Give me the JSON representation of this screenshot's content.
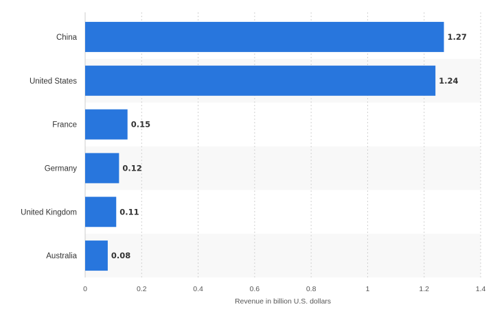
{
  "chart_data": {
    "type": "bar",
    "orientation": "horizontal",
    "categories": [
      "China",
      "United States",
      "France",
      "Germany",
      "United Kingdom",
      "Australia"
    ],
    "values": [
      1.27,
      1.24,
      0.15,
      0.12,
      0.11,
      0.08
    ],
    "value_labels": [
      "1.27",
      "1.24",
      "0.15",
      "0.12",
      "0.11",
      "0.08"
    ],
    "xlabel": "Revenue in billion U.S. dollars",
    "ylabel": "",
    "xlim": [
      0,
      1.4
    ],
    "xticks": [
      0,
      0.2,
      0.4,
      0.6,
      0.8,
      1,
      1.2,
      1.4
    ],
    "xtick_labels": [
      "0",
      "0.2",
      "0.4",
      "0.6",
      "0.8",
      "1",
      "1.2",
      "1.4"
    ],
    "grid": "vertical dashed",
    "legend": "none",
    "bar_color": "#2876dd",
    "alt_row_color": "#f8f8f8"
  }
}
